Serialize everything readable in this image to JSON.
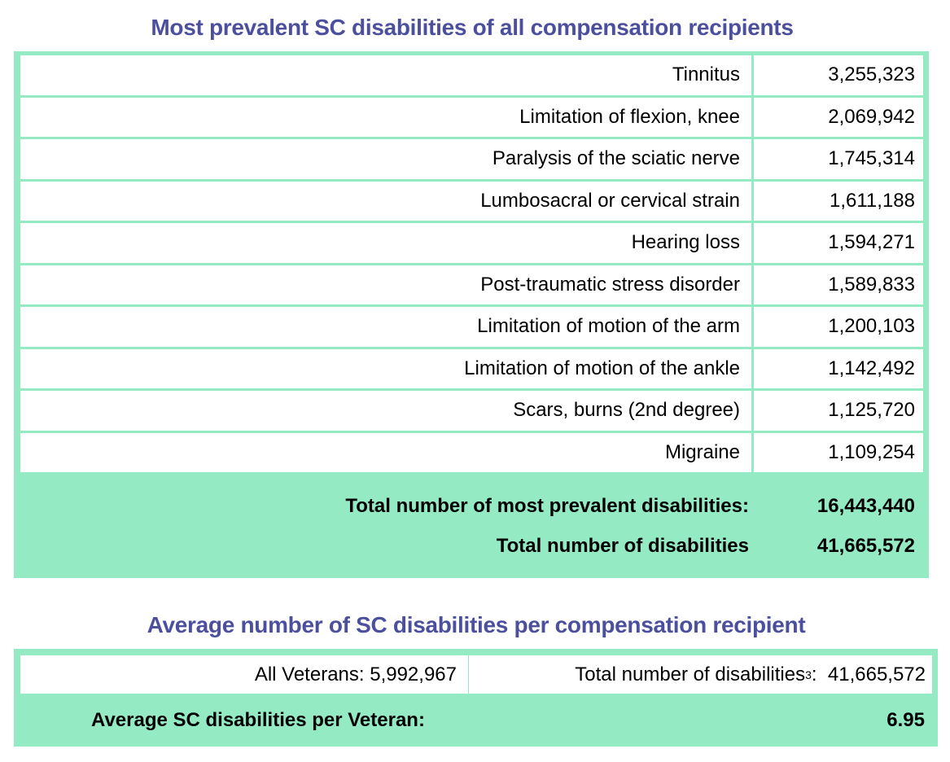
{
  "table1": {
    "title": "Most prevalent SC disabilities of all compensation recipients",
    "rows": [
      {
        "label": "Tinnitus",
        "value": "3,255,323"
      },
      {
        "label": "Limitation of flexion, knee",
        "value": "2,069,942"
      },
      {
        "label": "Paralysis of the sciatic nerve",
        "value": "1,745,314"
      },
      {
        "label": "Lumbosacral or cervical strain",
        "value": "1,611,188"
      },
      {
        "label": "Hearing loss",
        "value": "1,594,271"
      },
      {
        "label": "Post-traumatic stress disorder",
        "value": "1,589,833"
      },
      {
        "label": "Limitation of motion of the arm",
        "value": "1,200,103"
      },
      {
        "label": "Limitation of motion of the ankle",
        "value": "1,142,492"
      },
      {
        "label": "Scars, burns (2nd degree)",
        "value": "1,125,720"
      },
      {
        "label": "Migraine",
        "value": "1,109,254"
      }
    ],
    "total_prevalent_label": "Total number of most prevalent disabilities:",
    "total_prevalent_value": "16,443,440",
    "total_label": "Total number of disabilities",
    "total_value": "41,665,572"
  },
  "table2": {
    "title": "Average number of SC disabilities per compensation recipient",
    "veterans_label": "All Veterans: 5,992,967",
    "disabilities_label": "Total number of disabilities",
    "disabilities_footnote": "3",
    "disabilities_value": ":  41,665,572",
    "average_label": "Average SC disabilities per Veteran:",
    "average_value": "6.95"
  },
  "colors": {
    "accent_green": "#94ebc3",
    "title_blue": "#4b4f9e"
  }
}
